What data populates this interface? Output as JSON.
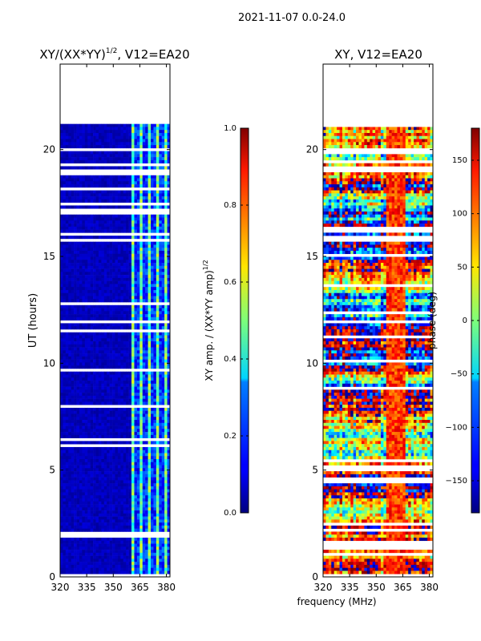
{
  "chart_data": [
    {
      "type": "heatmap",
      "suptitle": "2021-11-07 0.0-24.0",
      "title": "XY/(XX*YY)",
      "title_exponent": "1/2",
      "title_suffix": ", V12=EA20",
      "xlabel": "",
      "ylabel": "UT (hours)",
      "xlim": [
        320,
        382
      ],
      "ylim": [
        0,
        24
      ],
      "xticks": [
        320,
        335,
        350,
        365,
        380
      ],
      "yticks": [
        0,
        5,
        10,
        15,
        20
      ],
      "data_extent_hours": [
        0,
        21.2
      ],
      "colorbar": {
        "label": "XY amp. / (XX*YY amp)",
        "label_exponent": "1/2",
        "range": [
          0.0,
          1.0
        ],
        "ticks": [
          "0.0",
          "0.2",
          "0.4",
          "0.6",
          "0.8",
          "1.0"
        ]
      }
    },
    {
      "type": "heatmap",
      "title": "XY, V12=EA20",
      "xlabel": "frequency (MHz)",
      "ylabel": "",
      "xlim": [
        320,
        382
      ],
      "ylim": [
        0,
        24
      ],
      "xticks": [
        320,
        335,
        350,
        365,
        380
      ],
      "yticks": [
        0,
        5,
        10,
        15,
        20
      ],
      "data_extent_hours": [
        0,
        21.2
      ],
      "colorbar": {
        "label": "phase (deg)",
        "range": [
          -180,
          180
        ],
        "ticks": [
          "−150",
          "−100",
          "−50",
          "0",
          "50",
          "100",
          "150"
        ]
      }
    }
  ]
}
